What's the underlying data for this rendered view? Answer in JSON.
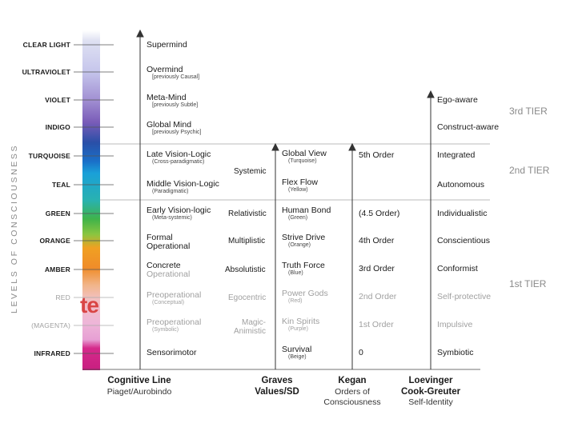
{
  "title": "",
  "axis_label": "LEVELS OF CONSCIOUSNESS",
  "colors": {
    "clear_light": "#dfe1f2",
    "ultraviolet": "#b9b8e6",
    "violet": "#8e6fbf",
    "indigo": "#2a4fa7",
    "turquoise": "#1aa0d8",
    "teal": "#29b2b0",
    "green": "#3fb34a",
    "orange": "#f0a022",
    "amber": "#f0a040",
    "red": "#f2b4b4",
    "magenta": "#e8a2d5",
    "infrared": "#d52a8b",
    "red_logo": "#d94545"
  },
  "levels": [
    {
      "label": "CLEAR LIGHT",
      "faded": false
    },
    {
      "label": "ULTRAVIOLET",
      "faded": false
    },
    {
      "label": "VIOLET",
      "faded": false
    },
    {
      "label": "INDIGO",
      "faded": false
    },
    {
      "label": "TURQUOISE",
      "faded": false
    },
    {
      "label": "TEAL",
      "faded": false
    },
    {
      "label": "GREEN",
      "faded": false
    },
    {
      "label": "ORANGE",
      "faded": false
    },
    {
      "label": "AMBER",
      "faded": false
    },
    {
      "label": "RED",
      "faded": true
    },
    {
      "label": "(MAGENTA)",
      "faded": true
    },
    {
      "label": "INFRARED",
      "faded": false
    }
  ],
  "bar_logo_text": "te",
  "cognitive": [
    {
      "main": "Supermind",
      "sub": ""
    },
    {
      "main": "Overmind",
      "sub": "[previously Causal]"
    },
    {
      "main": "Meta-Mind",
      "sub": "[previously Subtle]"
    },
    {
      "main": "Global Mind",
      "sub": "[previously Psychic]"
    },
    {
      "main": "Late Vision-Logic",
      "sub": "(Cross-paradigmatic)"
    },
    {
      "main": "Middle Vision-Logic",
      "sub": "(Paradigmatic)"
    },
    {
      "main": "Early Vision-logic",
      "sub": "(Meta-systemic)"
    },
    {
      "main": "Formal",
      "sub": "Operational"
    },
    {
      "main": "Concrete",
      "sub": "Operational"
    },
    {
      "main": "Preoperational",
      "sub": "(Conceptual)"
    },
    {
      "main": "Preoperational",
      "sub": "(Symbolic)"
    },
    {
      "main": "Sensorimotor",
      "sub": ""
    }
  ],
  "stages": {
    "systemic": "Systemic",
    "relativistic": "Relativistic",
    "multiplistic": "Multiplistic",
    "absolutistic": "Absolutistic",
    "egocentric": "Egocentric",
    "magic_1": "Magic-",
    "magic_2": "Animistic"
  },
  "graves": [
    {
      "main": "Global View",
      "sub": "(Turquoise)"
    },
    {
      "main": "Flex Flow",
      "sub": "(Yellow)"
    },
    {
      "main": "Human Bond",
      "sub": "(Green)"
    },
    {
      "main": "Strive Drive",
      "sub": "(Orange)"
    },
    {
      "main": "Truth Force",
      "sub": "(Blue)"
    },
    {
      "main": "Power Gods",
      "sub": "(Red)"
    },
    {
      "main": "Kin Spirits",
      "sub": "(Purple)"
    },
    {
      "main": "Survival",
      "sub": "(Beige)"
    }
  ],
  "kegan": [
    "5th Order",
    "(4.5 Order)",
    "4th Order",
    "3rd Order",
    "2nd Order",
    "1st Order",
    "0"
  ],
  "loevinger": [
    "Ego-aware",
    "Construct-aware",
    "Integrated",
    "Autonomous",
    "Individualistic",
    "Conscientious",
    "Conformist",
    "Self-protective",
    "Impulsive",
    "Symbiotic"
  ],
  "tiers": {
    "third": "3rd TIER",
    "second": "2nd TIER",
    "first": "1st TIER"
  },
  "columns": {
    "cognitive_title": "Cognitive Line",
    "cognitive_sub": "Piaget/Aurobindo",
    "graves_title_1": "Graves",
    "graves_title_2": "Values/SD",
    "kegan_title": "Kegan",
    "kegan_sub_1": "Orders of",
    "kegan_sub_2": "Consciousness",
    "loev_title_1": "Loevinger",
    "loev_title_2": "Cook-Greuter",
    "loev_sub": "Self-Identity"
  }
}
